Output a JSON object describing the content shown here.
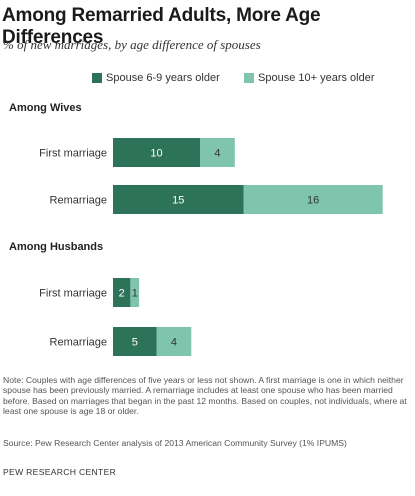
{
  "title": "Among Remarried Adults, More Age Differences",
  "subtitle": "% of new marriages, by age difference of spouses",
  "note": "Note: Couples with age differences of five years or less not shown. A first marriage is one in which neither spouse has been previously married. A remarriage includes at least one spouse who has been married before. Based on marriages that began in the past 12 months. Based on couples, not individuals, where at least one spouse is age 18 or older.",
  "source": "Source: Pew Research Center analysis of 2013 American Community Survey (1% IPUMS)",
  "credit": "PEW RESEARCH CENTER",
  "colors": {
    "series1": "#2d735a",
    "series2": "#7fc4ad",
    "label_on_dark": "#ffffff",
    "label_on_light": "#333333"
  },
  "chart_data": {
    "type": "bar",
    "orientation": "horizontal",
    "stacked": true,
    "series": [
      {
        "name": "Spouse 6-9 years older"
      },
      {
        "name": "Spouse 10+ years older"
      }
    ],
    "groups": [
      {
        "label": "Among Wives",
        "categories": [
          "First marriage",
          "Remarriage"
        ],
        "values": [
          [
            10,
            4
          ],
          [
            15,
            16
          ]
        ]
      },
      {
        "label": "Among Husbands",
        "categories": [
          "First marriage",
          "Remarriage"
        ],
        "values": [
          [
            2,
            1
          ],
          [
            5,
            4
          ]
        ]
      }
    ],
    "legend": "top",
    "grid": false
  }
}
